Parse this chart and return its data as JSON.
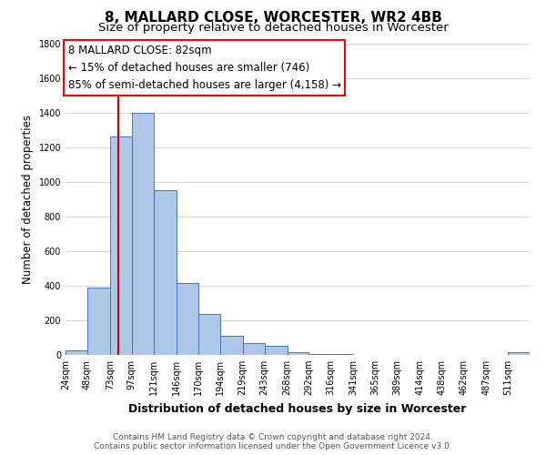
{
  "title": "8, MALLARD CLOSE, WORCESTER, WR2 4BB",
  "subtitle": "Size of property relative to detached houses in Worcester",
  "xlabel": "Distribution of detached houses by size in Worcester",
  "ylabel": "Number of detached properties",
  "bin_labels": [
    "24sqm",
    "48sqm",
    "73sqm",
    "97sqm",
    "121sqm",
    "146sqm",
    "170sqm",
    "194sqm",
    "219sqm",
    "243sqm",
    "268sqm",
    "292sqm",
    "316sqm",
    "341sqm",
    "365sqm",
    "389sqm",
    "414sqm",
    "438sqm",
    "462sqm",
    "487sqm",
    "511sqm"
  ],
  "bar_heights": [
    25,
    390,
    1260,
    1400,
    950,
    415,
    235,
    110,
    70,
    50,
    15,
    5,
    5,
    0,
    0,
    0,
    0,
    0,
    0,
    0,
    15
  ],
  "bar_color": "#aec6e8",
  "bar_edge_color": "#4472c4",
  "vline_x": 82,
  "vline_color": "#cc0000",
  "annotation_line1": "8 MALLARD CLOSE: 82sqm",
  "annotation_line2": "← 15% of detached houses are smaller (746)",
  "annotation_line3": "85% of semi-detached houses are larger (4,158) →",
  "ylim": [
    0,
    1800
  ],
  "yticks": [
    0,
    200,
    400,
    600,
    800,
    1000,
    1200,
    1400,
    1600,
    1800
  ],
  "footer_line1": "Contains HM Land Registry data © Crown copyright and database right 2024.",
  "footer_line2": "Contains public sector information licensed under the Open Government Licence v3.0.",
  "bin_edges": [
    24,
    48,
    73,
    97,
    121,
    146,
    170,
    194,
    219,
    243,
    268,
    292,
    316,
    341,
    365,
    389,
    414,
    438,
    462,
    487,
    511
  ],
  "title_fontsize": 11,
  "subtitle_fontsize": 9.5,
  "xlabel_fontsize": 9,
  "ylabel_fontsize": 8.5,
  "tick_fontsize": 7,
  "annotation_fontsize": 8.5,
  "footer_fontsize": 6.5,
  "background_color": "#ffffff",
  "grid_color": "#cccccc"
}
